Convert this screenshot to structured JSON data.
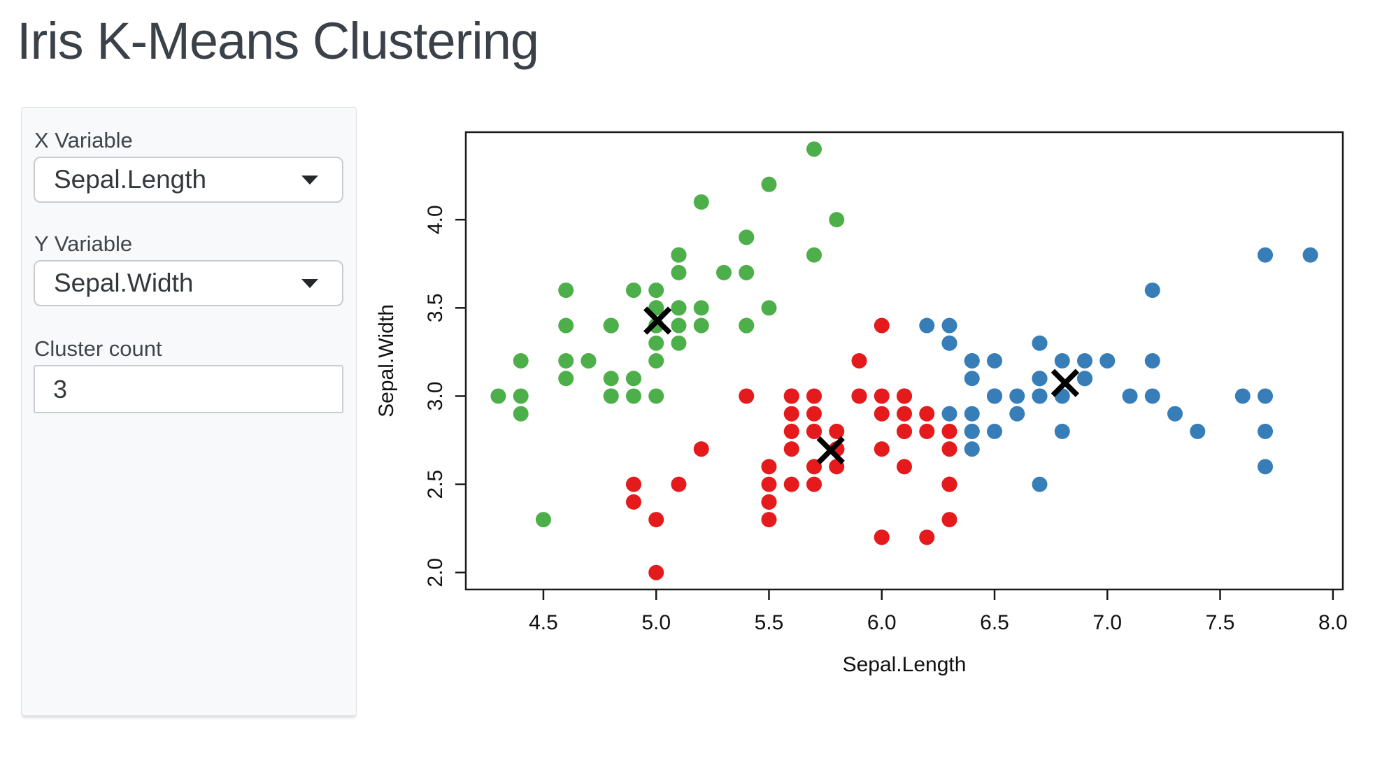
{
  "page": {
    "title": "Iris K-Means Clustering"
  },
  "sidebar": {
    "x_variable": {
      "label": "X Variable",
      "value": "Sepal.Length"
    },
    "y_variable": {
      "label": "Y Variable",
      "value": "Sepal.Width"
    },
    "cluster_count": {
      "label": "Cluster count",
      "value": "3"
    }
  },
  "chart_data": {
    "type": "scatter",
    "title": "",
    "xlabel": "Sepal.Length",
    "ylabel": "Sepal.Width",
    "xlim": [
      4.156,
      8.044
    ],
    "ylim": [
      1.904,
      4.496
    ],
    "x_ticks": [
      4.5,
      5.0,
      5.5,
      6.0,
      6.5,
      7.0,
      7.5,
      8.0
    ],
    "y_ticks": [
      2.0,
      2.5,
      3.0,
      3.5,
      4.0
    ],
    "grid": false,
    "legend": "none",
    "point_radius_px": 11,
    "series": [
      {
        "name": "cluster-1-green",
        "color": "#4DAF4A",
        "points": [
          [
            5.1,
            3.5
          ],
          [
            4.9,
            3.0
          ],
          [
            4.7,
            3.2
          ],
          [
            4.6,
            3.1
          ],
          [
            5.0,
            3.6
          ],
          [
            5.4,
            3.9
          ],
          [
            4.6,
            3.4
          ],
          [
            5.0,
            3.4
          ],
          [
            4.4,
            2.9
          ],
          [
            4.9,
            3.1
          ],
          [
            5.4,
            3.7
          ],
          [
            4.8,
            3.4
          ],
          [
            4.8,
            3.0
          ],
          [
            4.3,
            3.0
          ],
          [
            5.8,
            4.0
          ],
          [
            5.7,
            4.4
          ],
          [
            5.4,
            3.9
          ],
          [
            5.1,
            3.5
          ],
          [
            5.7,
            3.8
          ],
          [
            5.1,
            3.8
          ],
          [
            5.4,
            3.4
          ],
          [
            5.1,
            3.7
          ],
          [
            4.6,
            3.6
          ],
          [
            5.1,
            3.3
          ],
          [
            4.8,
            3.4
          ],
          [
            5.0,
            3.0
          ],
          [
            5.0,
            3.4
          ],
          [
            5.2,
            3.5
          ],
          [
            5.2,
            3.4
          ],
          [
            4.7,
            3.2
          ],
          [
            4.8,
            3.1
          ],
          [
            5.4,
            3.4
          ],
          [
            5.2,
            4.1
          ],
          [
            5.5,
            4.2
          ],
          [
            4.9,
            3.1
          ],
          [
            5.0,
            3.2
          ],
          [
            5.5,
            3.5
          ],
          [
            4.9,
            3.6
          ],
          [
            4.4,
            3.0
          ],
          [
            5.1,
            3.4
          ],
          [
            5.0,
            3.5
          ],
          [
            4.5,
            2.3
          ],
          [
            4.4,
            3.2
          ],
          [
            5.0,
            3.5
          ],
          [
            5.1,
            3.8
          ],
          [
            4.8,
            3.0
          ],
          [
            5.1,
            3.8
          ],
          [
            4.6,
            3.2
          ],
          [
            5.3,
            3.7
          ],
          [
            5.0,
            3.3
          ]
        ]
      },
      {
        "name": "cluster-2-red",
        "color": "#E41A1C",
        "points": [
          [
            5.5,
            2.3
          ],
          [
            5.7,
            2.8
          ],
          [
            4.9,
            2.4
          ],
          [
            5.2,
            2.7
          ],
          [
            5.0,
            2.0
          ],
          [
            5.9,
            3.0
          ],
          [
            6.0,
            2.2
          ],
          [
            6.1,
            2.9
          ],
          [
            5.6,
            2.9
          ],
          [
            5.6,
            3.0
          ],
          [
            5.8,
            2.7
          ],
          [
            6.2,
            2.2
          ],
          [
            5.6,
            2.5
          ],
          [
            5.9,
            3.2
          ],
          [
            6.1,
            2.8
          ],
          [
            6.3,
            2.5
          ],
          [
            6.1,
            2.8
          ],
          [
            6.0,
            2.9
          ],
          [
            5.7,
            2.6
          ],
          [
            5.5,
            2.4
          ],
          [
            5.5,
            2.4
          ],
          [
            5.8,
            2.7
          ],
          [
            6.0,
            2.7
          ],
          [
            5.4,
            3.0
          ],
          [
            6.0,
            3.4
          ],
          [
            6.3,
            2.3
          ],
          [
            5.6,
            3.0
          ],
          [
            5.5,
            2.5
          ],
          [
            5.5,
            2.6
          ],
          [
            6.1,
            3.0
          ],
          [
            5.8,
            2.6
          ],
          [
            5.0,
            2.3
          ],
          [
            5.6,
            2.7
          ],
          [
            5.7,
            3.0
          ],
          [
            5.7,
            2.9
          ],
          [
            6.2,
            2.9
          ],
          [
            5.1,
            2.5
          ],
          [
            5.7,
            2.8
          ],
          [
            5.8,
            2.7
          ],
          [
            4.9,
            2.5
          ],
          [
            5.7,
            2.5
          ],
          [
            5.8,
            2.8
          ],
          [
            6.0,
            2.2
          ],
          [
            5.6,
            2.8
          ],
          [
            6.3,
            2.7
          ],
          [
            6.2,
            2.8
          ],
          [
            6.1,
            3.0
          ],
          [
            6.3,
            2.8
          ],
          [
            6.1,
            2.6
          ],
          [
            6.0,
            3.0
          ],
          [
            5.8,
            2.7
          ],
          [
            6.3,
            2.5
          ],
          [
            5.9,
            3.0
          ]
        ]
      },
      {
        "name": "cluster-3-blue",
        "color": "#377EB8",
        "points": [
          [
            7.0,
            3.2
          ],
          [
            6.4,
            3.2
          ],
          [
            6.9,
            3.1
          ],
          [
            6.5,
            2.8
          ],
          [
            6.3,
            3.3
          ],
          [
            6.6,
            2.9
          ],
          [
            6.7,
            3.1
          ],
          [
            6.4,
            2.9
          ],
          [
            6.6,
            3.0
          ],
          [
            6.8,
            2.8
          ],
          [
            6.7,
            3.0
          ],
          [
            6.7,
            3.1
          ],
          [
            6.3,
            3.3
          ],
          [
            7.1,
            3.0
          ],
          [
            6.3,
            2.9
          ],
          [
            6.5,
            3.0
          ],
          [
            7.6,
            3.0
          ],
          [
            7.3,
            2.9
          ],
          [
            6.7,
            2.5
          ],
          [
            7.2,
            3.6
          ],
          [
            6.5,
            3.2
          ],
          [
            6.4,
            2.7
          ],
          [
            6.8,
            3.0
          ],
          [
            6.4,
            3.2
          ],
          [
            6.5,
            3.0
          ],
          [
            7.7,
            3.8
          ],
          [
            7.7,
            2.6
          ],
          [
            6.9,
            3.2
          ],
          [
            7.7,
            2.8
          ],
          [
            6.7,
            3.3
          ],
          [
            7.2,
            3.2
          ],
          [
            6.4,
            2.8
          ],
          [
            7.2,
            3.0
          ],
          [
            7.4,
            2.8
          ],
          [
            7.9,
            3.8
          ],
          [
            6.4,
            2.8
          ],
          [
            7.7,
            3.0
          ],
          [
            6.3,
            3.4
          ],
          [
            6.4,
            3.1
          ],
          [
            6.9,
            3.1
          ],
          [
            6.7,
            3.1
          ],
          [
            6.9,
            3.1
          ],
          [
            6.8,
            3.2
          ],
          [
            6.7,
            3.3
          ],
          [
            6.7,
            3.0
          ],
          [
            6.5,
            3.0
          ],
          [
            6.2,
            3.4
          ]
        ]
      }
    ],
    "centroids": {
      "marker": "x",
      "color": "#000000",
      "points": [
        [
          5.006,
          3.428
        ],
        [
          5.7736,
          2.6925
        ],
        [
          6.8128,
          3.0745
        ]
      ]
    }
  }
}
